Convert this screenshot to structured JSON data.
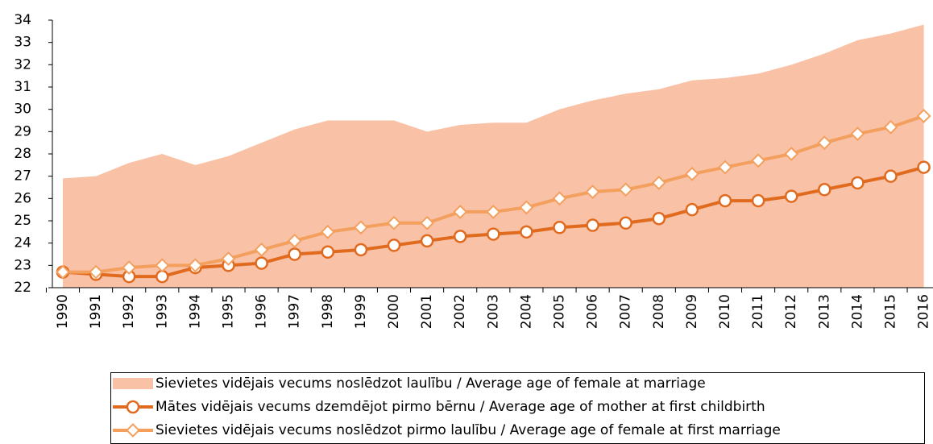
{
  "chart_data": {
    "type": "line",
    "categories": [
      "1990",
      "1991",
      "1992",
      "1993",
      "1994",
      "1995",
      "1996",
      "1997",
      "1998",
      "1999",
      "2000",
      "2001",
      "2002",
      "2003",
      "2004",
      "2005",
      "2006",
      "2007",
      "2008",
      "2009",
      "2010",
      "2011",
      "2012",
      "2013",
      "2014",
      "2015",
      "2016"
    ],
    "series": [
      {
        "name": "Sievietes vidējais vecums noslēdzot laulību / Average age of female at marriage",
        "kind": "area",
        "color": "#f9c1a6",
        "values": [
          26.9,
          27.0,
          27.6,
          28.0,
          27.5,
          27.9,
          28.5,
          29.1,
          29.5,
          29.5,
          29.5,
          29.0,
          29.3,
          29.4,
          29.4,
          30.0,
          30.4,
          30.7,
          30.9,
          31.3,
          31.4,
          31.6,
          32.0,
          32.5,
          33.1,
          33.4,
          33.8
        ]
      },
      {
        "name": "Mātes vidējais vecums dzemdējot pirmo bērnu / Average age of mother at first childbirth",
        "kind": "line",
        "marker": "circle",
        "color": "#e06b1f",
        "values": [
          22.7,
          22.6,
          22.5,
          22.5,
          22.9,
          23.0,
          23.1,
          23.5,
          23.6,
          23.7,
          23.9,
          24.1,
          24.3,
          24.4,
          24.5,
          24.7,
          24.8,
          24.9,
          25.1,
          25.5,
          25.9,
          25.9,
          26.1,
          26.4,
          26.7,
          27.0,
          27.4
        ]
      },
      {
        "name": "Sievietes vidējais vecums noslēdzot pirmo laulību / Average age of female at first marriage",
        "kind": "line",
        "marker": "diamond",
        "color": "#f3a05e",
        "values": [
          22.7,
          22.7,
          22.9,
          23.0,
          23.0,
          23.3,
          23.7,
          24.1,
          24.5,
          24.7,
          24.9,
          24.9,
          25.4,
          25.4,
          25.6,
          26.0,
          26.3,
          26.4,
          26.7,
          27.1,
          27.4,
          27.7,
          28.0,
          28.5,
          28.9,
          29.2,
          29.7
        ]
      }
    ],
    "ylim": [
      22,
      34
    ],
    "yticks": [
      22,
      23,
      24,
      25,
      26,
      27,
      28,
      29,
      30,
      31,
      32,
      33,
      34
    ],
    "legend": "bottom"
  }
}
